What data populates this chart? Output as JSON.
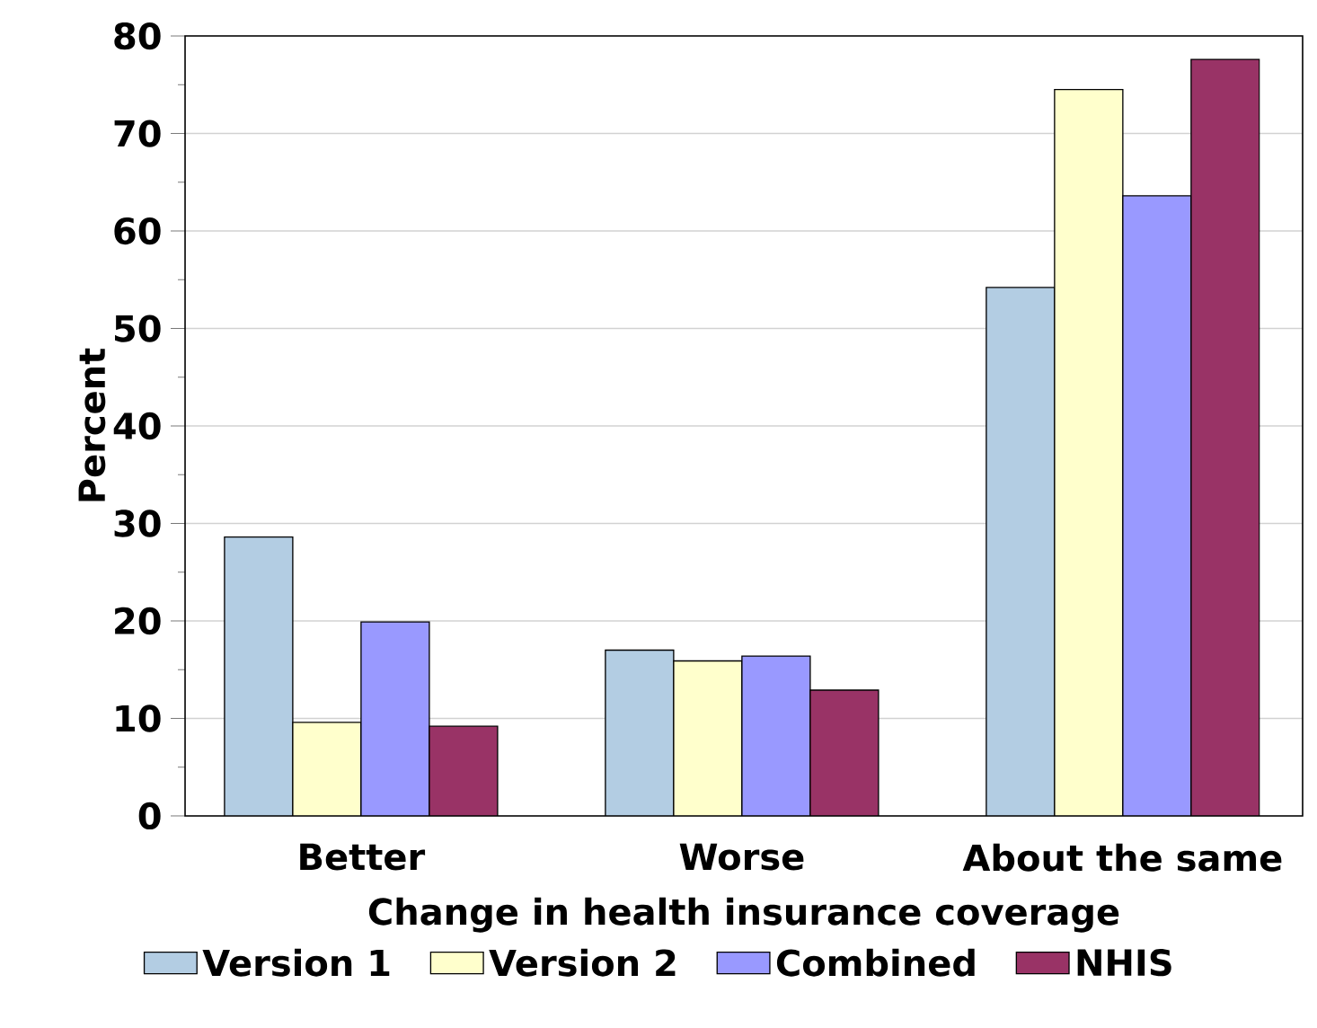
{
  "chart_data": {
    "type": "bar",
    "xlabel": "Change in health insurance coverage",
    "ylabel": "Percent",
    "categories": [
      "Better",
      "Worse",
      "About the same"
    ],
    "series": [
      {
        "name": "Version 1",
        "color": "#b3cde3",
        "values": [
          28.6,
          17.0,
          54.2
        ]
      },
      {
        "name": "Version 2",
        "color": "#ffffcc",
        "values": [
          9.6,
          15.9,
          74.5
        ]
      },
      {
        "name": "Combined",
        "color": "#9999ff",
        "values": [
          19.9,
          16.4,
          63.6
        ]
      },
      {
        "name": "NHIS",
        "color": "#993366",
        "values": [
          9.2,
          12.9,
          77.6
        ]
      }
    ],
    "ylim": [
      0,
      80
    ],
    "yticks": [
      0,
      10,
      20,
      30,
      40,
      50,
      60,
      70,
      80
    ],
    "grid": "y",
    "legend": "bottom"
  }
}
